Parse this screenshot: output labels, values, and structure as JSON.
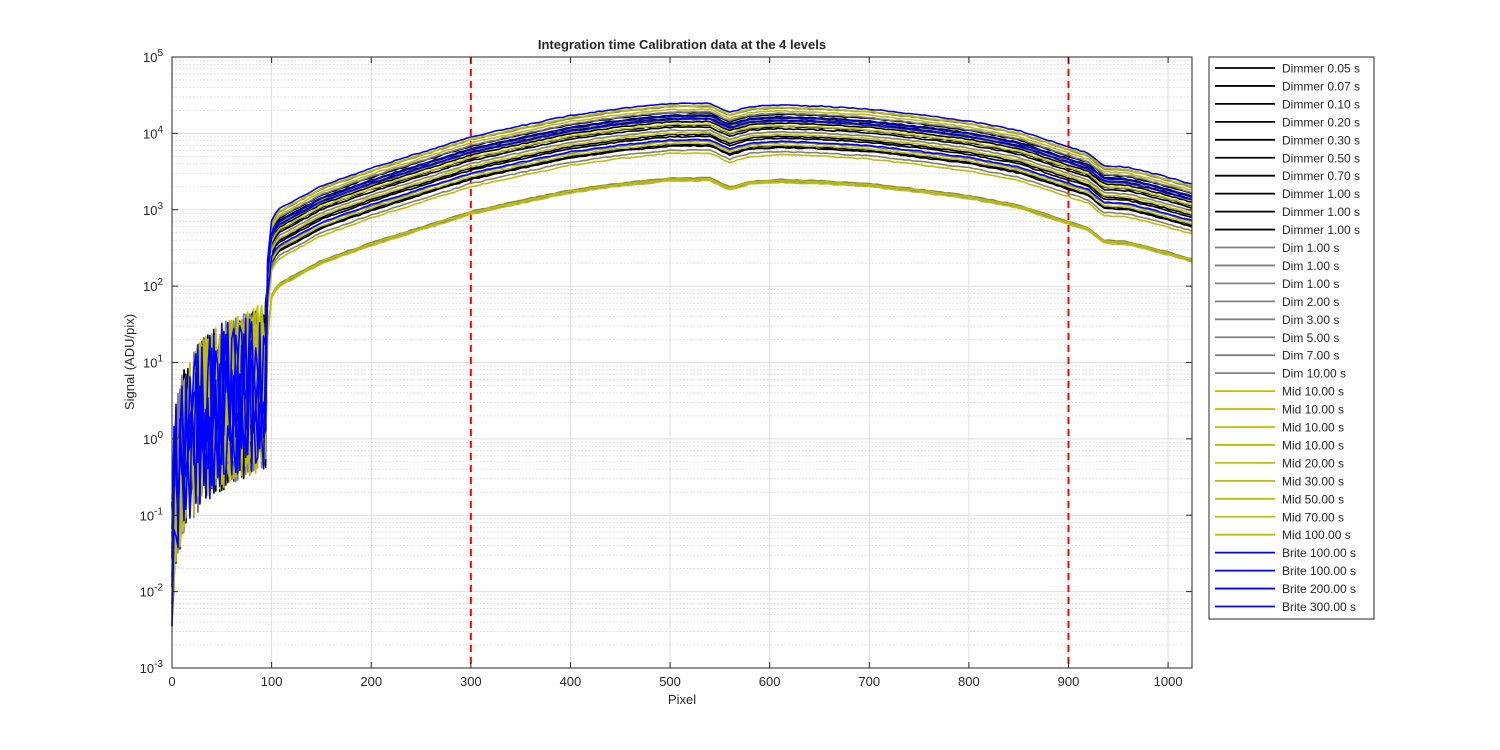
{
  "chart_data": {
    "type": "line",
    "title": "Integration time Calibration data at the 4 levels",
    "xlabel": "Pixel",
    "ylabel": "Signal (ADU/pix)",
    "xlim": [
      0,
      1024
    ],
    "ylim": [
      0.001,
      100000
    ],
    "yscale": "log",
    "grid": true,
    "minor_grid": true,
    "legend_position": "outside-right",
    "x_ticks": [
      "0",
      "100",
      "200",
      "300",
      "400",
      "500",
      "600",
      "700",
      "800",
      "900",
      "1000"
    ],
    "y_tick_bases": [
      "10",
      "10",
      "10",
      "10",
      "10",
      "10",
      "10",
      "10",
      "10"
    ],
    "y_tick_exponents": [
      "-3",
      "-2",
      "-1",
      "0",
      "1",
      "2",
      "3",
      "4",
      "5"
    ],
    "reference_lines": [
      {
        "axis": "x",
        "value": 300,
        "color": "#ff0000",
        "style": "dashed"
      },
      {
        "axis": "x",
        "value": 900,
        "color": "#ff0000",
        "style": "dashed"
      }
    ],
    "series_profile": {
      "description_points": "relative signal shape along pixels (multiplied by each series scale, in ADU/pix at pixel 300)",
      "x": [
        0,
        90,
        100,
        106,
        150,
        200,
        250,
        300,
        350,
        400,
        450,
        500,
        540,
        560,
        580,
        610,
        650,
        700,
        750,
        800,
        850,
        900,
        920,
        935,
        960,
        990,
        1024
      ],
      "relative": [
        0.0005,
        0.004,
        0.08,
        0.111,
        0.228,
        0.389,
        0.624,
        1.0,
        1.39,
        1.91,
        2.35,
        2.73,
        2.75,
        2.09,
        2.49,
        2.62,
        2.52,
        2.31,
        1.95,
        1.61,
        1.21,
        0.74,
        0.61,
        0.42,
        0.4,
        0.32,
        0.24
      ]
    },
    "series": [
      {
        "name": "Dimmer 0.05 s",
        "color": "#000000",
        "value_at_300": 2500
      },
      {
        "name": "Dimmer 0.07 s",
        "color": "#000000",
        "value_at_300": 3300
      },
      {
        "name": "Dimmer 0.10 s",
        "color": "#000000",
        "value_at_300": 4400
      },
      {
        "name": "Dimmer 0.20 s",
        "color": "#000000",
        "value_at_300": 5200
      },
      {
        "name": "Dimmer 0.30 s",
        "color": "#000000",
        "value_at_300": 5800
      },
      {
        "name": "Dimmer 0.50 s",
        "color": "#000000",
        "value_at_300": 6300
      },
      {
        "name": "Dimmer 0.70 s",
        "color": "#000000",
        "value_at_300": 6800
      },
      {
        "name": "Dimmer 1.00 s",
        "color": "#000000",
        "value_at_300": 2600
      },
      {
        "name": "Dimmer 1.00 s",
        "color": "#000000",
        "value_at_300": 3500
      },
      {
        "name": "Dimmer 1.00 s",
        "color": "#000000",
        "value_at_300": 4700
      },
      {
        "name": "Dim 1.00 s",
        "color": "#808080",
        "value_at_300": 900
      },
      {
        "name": "Dim 1.00 s",
        "color": "#808080",
        "value_at_300": 950
      },
      {
        "name": "Dim 1.00 s",
        "color": "#808080",
        "value_at_300": 2200
      },
      {
        "name": "Dim 2.00 s",
        "color": "#808080",
        "value_at_300": 2900
      },
      {
        "name": "Dim 3.00 s",
        "color": "#808080",
        "value_at_300": 4000
      },
      {
        "name": "Dim 5.00 s",
        "color": "#808080",
        "value_at_300": 5500
      },
      {
        "name": "Dim 7.00 s",
        "color": "#808080",
        "value_at_300": 7000
      },
      {
        "name": "Dim 10.00 s",
        "color": "#808080",
        "value_at_300": 8200
      },
      {
        "name": "Mid 10.00 s",
        "color": "#bfbf00",
        "value_at_300": 870
      },
      {
        "name": "Mid 10.00 s",
        "color": "#bfbf00",
        "value_at_300": 920
      },
      {
        "name": "Mid 10.00 s",
        "color": "#bfbf00",
        "value_at_300": 2000
      },
      {
        "name": "Mid 10.00 s",
        "color": "#bfbf00",
        "value_at_300": 2700
      },
      {
        "name": "Mid 20.00 s",
        "color": "#bfbf00",
        "value_at_300": 3700
      },
      {
        "name": "Mid 30.00 s",
        "color": "#bfbf00",
        "value_at_300": 4800
      },
      {
        "name": "Mid 50.00 s",
        "color": "#bfbf00",
        "value_at_300": 6000
      },
      {
        "name": "Mid 70.00 s",
        "color": "#bfbf00",
        "value_at_300": 7500
      },
      {
        "name": "Mid 100.00 s",
        "color": "#bfbf00",
        "value_at_300": 8400
      },
      {
        "name": "Brite 100.00 s",
        "color": "#0000ff",
        "value_at_300": 3000
      },
      {
        "name": "Brite 100.00 s",
        "color": "#0000ff",
        "value_at_300": 5600
      },
      {
        "name": "Brite 200.00 s",
        "color": "#0000ff",
        "value_at_300": 6100
      },
      {
        "name": "Brite 300.00 s",
        "color": "#0000ff",
        "value_at_300": 9000
      }
    ]
  }
}
